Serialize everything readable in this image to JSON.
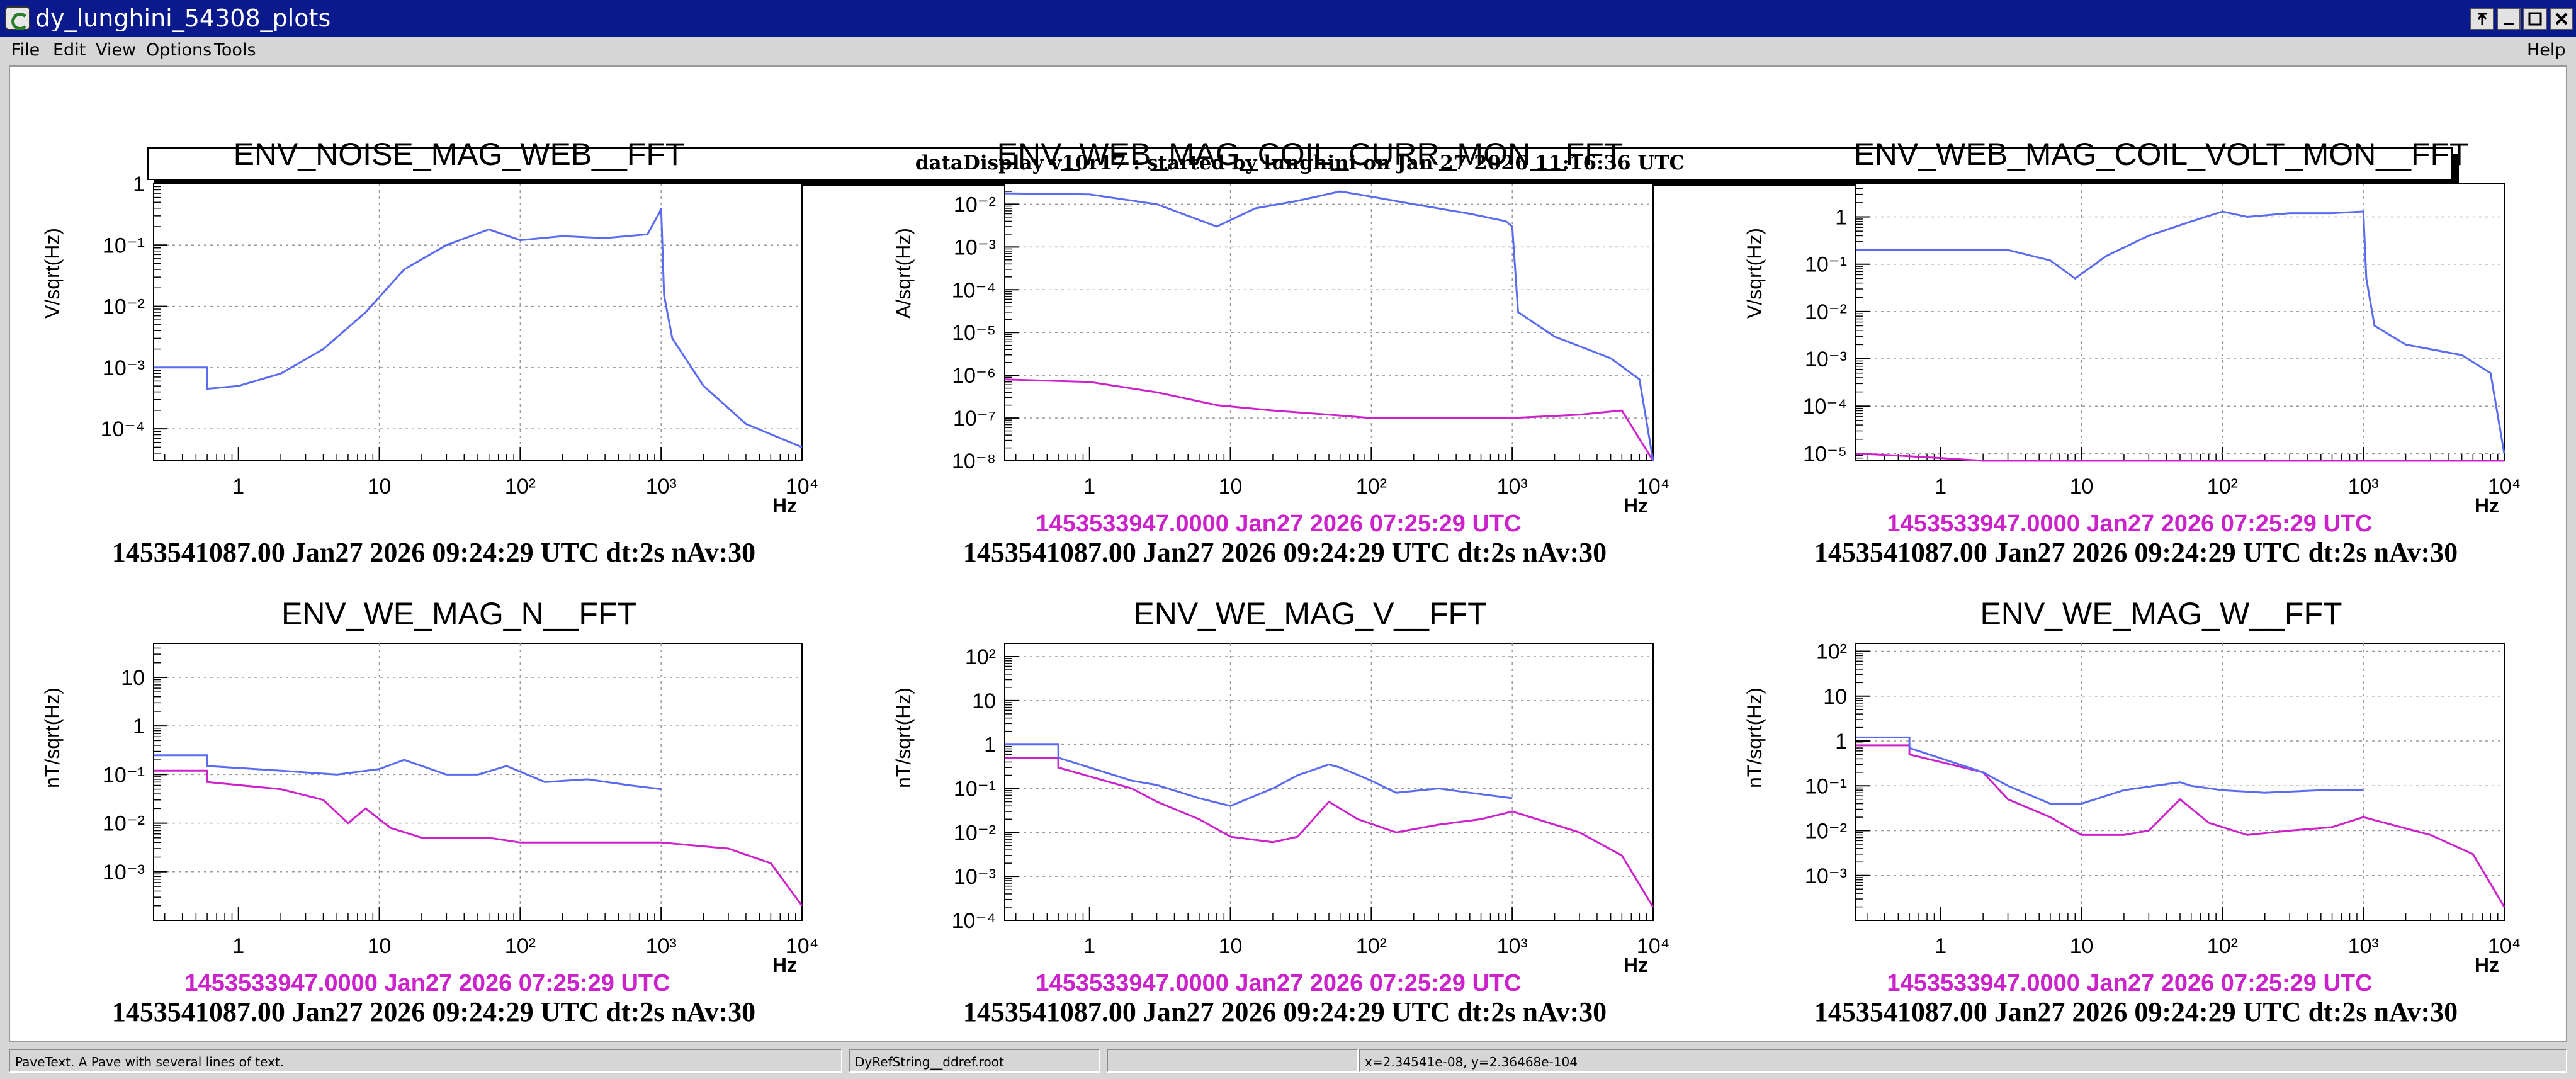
{
  "window": {
    "title": "dy_lunghini_54308_plots",
    "controls": [
      "pin",
      "minimize",
      "maximize",
      "close"
    ]
  },
  "menubar": {
    "items": [
      "File",
      "Edit",
      "View",
      "Options",
      "Tools"
    ],
    "help": "Help"
  },
  "header_pave": "dataDisplay v10r17 : started by lunghini on Jan 27 2026 11:16:36 UTC",
  "statusbar": {
    "object_info": "PaveText. A Pave with several lines of text.",
    "object_name": "DyRefString__ddref.root",
    "coords": "x=2.34541e-08, y=2.36468e-104"
  },
  "colors": {
    "current": "#5b6bf0",
    "reference": "#cc22cc"
  },
  "chart_data": [
    {
      "type": "line",
      "title": "ENV_NOISE_MAG_WEB__FFT",
      "ylabel": "V/sqrt(Hz)",
      "xlabel": "Hz",
      "xscale": "log",
      "yscale": "log",
      "xlim": [
        0.25,
        10000
      ],
      "ylim": [
        3e-05,
        1
      ],
      "grid": true,
      "ytick_labels": [
        "10⁻⁴",
        "10⁻³",
        "10⁻²",
        "10⁻¹",
        "1"
      ],
      "xtick_labels": [
        "1",
        "10",
        "10²",
        "10³",
        "10⁴"
      ],
      "reference_caption": "",
      "caption": "1453541087.00 Jan27 2026 09:24:29 UTC dt:2s nAv:30",
      "series": [
        {
          "role": "current",
          "x": [
            0.25,
            0.6,
            0.6,
            1,
            2,
            4,
            8,
            15,
            30,
            60,
            100,
            200,
            400,
            800,
            980,
            1000,
            1050,
            1200,
            2000,
            4000,
            10000
          ],
          "y": [
            0.001,
            0.001,
            0.00045,
            0.0005,
            0.0008,
            0.002,
            0.008,
            0.04,
            0.1,
            0.18,
            0.12,
            0.14,
            0.13,
            0.15,
            0.35,
            0.4,
            0.015,
            0.003,
            0.0005,
            0.00012,
            5e-05
          ]
        }
      ]
    },
    {
      "type": "line",
      "title": "ENV_WEB_MAG_COIL_CURR_MON__FFT",
      "ylabel": "A/sqrt(Hz)",
      "xlabel": "Hz",
      "xscale": "log",
      "yscale": "log",
      "xlim": [
        0.25,
        10000
      ],
      "ylim": [
        1e-08,
        0.03
      ],
      "grid": true,
      "ytick_labels": [
        "10⁻⁸",
        "10⁻⁷",
        "10⁻⁶",
        "10⁻⁵",
        "10⁻⁴",
        "10⁻³",
        "10⁻²"
      ],
      "xtick_labels": [
        "1",
        "10",
        "10²",
        "10³",
        "10⁴"
      ],
      "reference_caption": "1453533947.0000 Jan27 2026 07:25:29 UTC",
      "caption": "1453541087.00 Jan27 2026 09:24:29 UTC dt:2s nAv:30",
      "series": [
        {
          "role": "current",
          "x": [
            0.25,
            1,
            3,
            8,
            15,
            30,
            60,
            100,
            200,
            500,
            900,
            1000,
            1100,
            2000,
            5000,
            8000,
            10000
          ],
          "y": [
            0.018,
            0.017,
            0.01,
            0.003,
            0.008,
            0.012,
            0.02,
            0.015,
            0.01,
            0.006,
            0.004,
            0.003,
            3e-05,
            8e-06,
            2.5e-06,
            8e-07,
            1e-08
          ]
        },
        {
          "role": "reference",
          "x": [
            0.25,
            1,
            3,
            8,
            20,
            50,
            100,
            300,
            1000,
            3000,
            6000,
            10000
          ],
          "y": [
            8e-07,
            7e-07,
            4e-07,
            2e-07,
            1.5e-07,
            1.2e-07,
            1e-07,
            1e-07,
            1e-07,
            1.2e-07,
            1.5e-07,
            1e-08
          ]
        }
      ]
    },
    {
      "type": "line",
      "title": "ENV_WEB_MAG_COIL_VOLT_MON__FFT",
      "ylabel": "V/sqrt(Hz)",
      "xlabel": "Hz",
      "xscale": "log",
      "yscale": "log",
      "xlim": [
        0.25,
        10000
      ],
      "ylim": [
        7e-06,
        5
      ],
      "grid": true,
      "ytick_labels": [
        "10⁻⁵",
        "10⁻⁴",
        "10⁻³",
        "10⁻²",
        "10⁻¹",
        "1"
      ],
      "xtick_labels": [
        "1",
        "10",
        "10²",
        "10³",
        "10⁴"
      ],
      "reference_caption": "1453533947.0000 Jan27 2026 07:25:29 UTC",
      "caption": "1453541087.00 Jan27 2026 09:24:29 UTC dt:2s nAv:30",
      "series": [
        {
          "role": "current",
          "x": [
            0.25,
            1,
            3,
            6,
            9,
            15,
            30,
            60,
            100,
            150,
            300,
            600,
            1000,
            1050,
            1200,
            2000,
            5000,
            8000,
            10000
          ],
          "y": [
            0.2,
            0.2,
            0.2,
            0.12,
            0.05,
            0.15,
            0.4,
            0.8,
            1.3,
            1.0,
            1.2,
            1.2,
            1.3,
            0.05,
            0.005,
            0.002,
            0.0012,
            0.0005,
            1e-05
          ]
        },
        {
          "role": "reference",
          "x": [
            0.25,
            0.5,
            1,
            2,
            10000
          ],
          "y": [
            1e-05,
            9e-06,
            8e-06,
            7e-06,
            7e-06
          ]
        }
      ]
    },
    {
      "type": "line",
      "title": "ENV_WE_MAG_N__FFT",
      "ylabel": "nT/sqrt(Hz)",
      "xlabel": "Hz",
      "xscale": "log",
      "yscale": "log",
      "xlim": [
        0.25,
        10000
      ],
      "ylim": [
        0.0001,
        50
      ],
      "grid": true,
      "ytick_labels": [
        "10⁻³",
        "10⁻²",
        "10⁻¹",
        "1",
        "10"
      ],
      "xtick_labels": [
        "1",
        "10",
        "10²",
        "10³",
        "10⁴"
      ],
      "reference_caption": "1453533947.0000 Jan27 2026 07:25:29 UTC",
      "caption": "1453541087.00 Jan27 2026 09:24:29 UTC dt:2s nAv:30",
      "series": [
        {
          "role": "current",
          "x": [
            0.25,
            0.6,
            0.6,
            2,
            5,
            10,
            15,
            30,
            50,
            80,
            150,
            300,
            600,
            1000
          ],
          "y": [
            0.25,
            0.25,
            0.15,
            0.12,
            0.1,
            0.13,
            0.2,
            0.1,
            0.1,
            0.15,
            0.07,
            0.08,
            0.06,
            0.05
          ]
        },
        {
          "role": "reference",
          "x": [
            0.25,
            0.6,
            0.6,
            2,
            4,
            6,
            8,
            12,
            20,
            40,
            50,
            60,
            100,
            200,
            500,
            1000,
            3000,
            6000,
            10000
          ],
          "y": [
            0.12,
            0.12,
            0.07,
            0.05,
            0.03,
            0.01,
            0.02,
            0.008,
            0.005,
            0.005,
            0.005,
            0.005,
            0.004,
            0.004,
            0.004,
            0.004,
            0.003,
            0.0015,
            0.0002
          ]
        }
      ]
    },
    {
      "type": "line",
      "title": "ENV_WE_MAG_V__FFT",
      "ylabel": "nT/sqrt(Hz)",
      "xlabel": "Hz",
      "xscale": "log",
      "yscale": "log",
      "xlim": [
        0.25,
        10000
      ],
      "ylim": [
        0.0001,
        200
      ],
      "grid": true,
      "ytick_labels": [
        "10⁻⁴",
        "10⁻³",
        "10⁻²",
        "10⁻¹",
        "1",
        "10",
        "10²"
      ],
      "xtick_labels": [
        "1",
        "10",
        "10²",
        "10³",
        "10⁴"
      ],
      "reference_caption": "1453533947.0000 Jan27 2026 07:25:29 UTC",
      "caption": "1453541087.00 Jan27 2026 09:24:29 UTC dt:2s nAv:30",
      "series": [
        {
          "role": "current",
          "x": [
            0.25,
            0.6,
            0.6,
            2,
            3,
            6,
            10,
            20,
            30,
            50,
            60,
            100,
            150,
            300,
            500,
            1000
          ],
          "y": [
            1,
            1,
            0.5,
            0.15,
            0.12,
            0.06,
            0.04,
            0.1,
            0.2,
            0.35,
            0.3,
            0.15,
            0.08,
            0.1,
            0.08,
            0.06
          ]
        },
        {
          "role": "reference",
          "x": [
            0.25,
            0.6,
            0.6,
            2,
            3,
            6,
            10,
            20,
            30,
            50,
            80,
            150,
            300,
            600,
            1000,
            3000,
            6000,
            10000
          ],
          "y": [
            0.5,
            0.5,
            0.3,
            0.1,
            0.05,
            0.02,
            0.008,
            0.006,
            0.008,
            0.05,
            0.02,
            0.01,
            0.015,
            0.02,
            0.03,
            0.01,
            0.003,
            0.0002
          ]
        }
      ]
    },
    {
      "type": "line",
      "title": "ENV_WE_MAG_W__FFT",
      "ylabel": "nT/sqrt(Hz)",
      "xlabel": "Hz",
      "xscale": "log",
      "yscale": "log",
      "xlim": [
        0.25,
        10000
      ],
      "ylim": [
        0.0001,
        150
      ],
      "grid": true,
      "ytick_labels": [
        "10⁻³",
        "10⁻²",
        "10⁻¹",
        "1",
        "10",
        "10²"
      ],
      "xtick_labels": [
        "1",
        "10",
        "10²",
        "10³",
        "10⁴"
      ],
      "reference_caption": "1453533947.0000 Jan27 2026 07:25:29 UTC",
      "caption": "1453541087.00 Jan27 2026 09:24:29 UTC dt:2s nAv:30",
      "series": [
        {
          "role": "current",
          "x": [
            0.25,
            0.6,
            0.6,
            2,
            3,
            6,
            10,
            20,
            50,
            60,
            100,
            200,
            500,
            1000
          ],
          "y": [
            1.2,
            1.2,
            0.7,
            0.2,
            0.1,
            0.04,
            0.04,
            0.08,
            0.12,
            0.1,
            0.08,
            0.07,
            0.08,
            0.08
          ]
        },
        {
          "role": "reference",
          "x": [
            0.25,
            0.6,
            0.6,
            2,
            3,
            6,
            10,
            20,
            30,
            50,
            80,
            150,
            300,
            600,
            1000,
            3000,
            6000,
            10000
          ],
          "y": [
            0.8,
            0.8,
            0.5,
            0.2,
            0.05,
            0.02,
            0.008,
            0.008,
            0.01,
            0.05,
            0.015,
            0.008,
            0.01,
            0.012,
            0.02,
            0.008,
            0.003,
            0.0002
          ]
        }
      ]
    }
  ]
}
